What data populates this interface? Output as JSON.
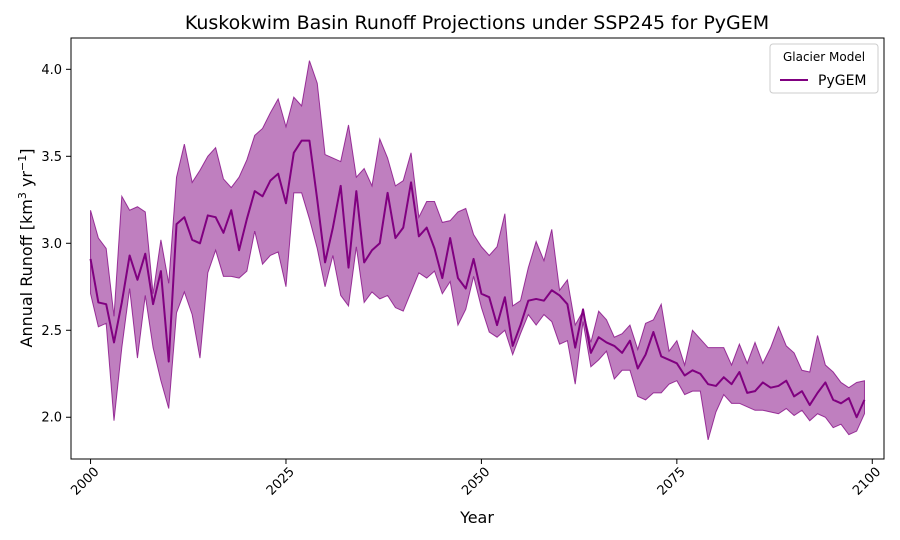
{
  "chart_data": {
    "type": "area",
    "title": "Kuskokwim Basin Runoff Projections under SSP245 for PyGEM",
    "xlabel": "Year",
    "ylabel": "Annual Runoff [km³ yr⁻¹]",
    "ylabel_parts": {
      "prefix": "Annual Runoff [km",
      "sup1": "3",
      "middle": " yr",
      "sup2": "−1",
      "suffix": "]"
    },
    "xlim": [
      1997.5,
      2101.5
    ],
    "ylim": [
      1.76,
      4.18
    ],
    "x_ticks": [
      2000,
      2025,
      2050,
      2075,
      2100
    ],
    "y_ticks": [
      2.0,
      2.5,
      3.0,
      3.5,
      4.0
    ],
    "x_tick_labels": [
      "2000",
      "2025",
      "2050",
      "2075",
      "2100"
    ],
    "y_tick_labels": [
      "2.0",
      "2.5",
      "3.0",
      "3.5",
      "4.0"
    ],
    "grid": false,
    "legend": {
      "title": "Glacier Model",
      "placement": "top-right",
      "entries": [
        "PyGEM"
      ]
    },
    "colors": {
      "line": "#800080",
      "band": "#800080",
      "band_opacity": 0.5
    },
    "x_start": 2000,
    "series": [
      {
        "name": "PyGEM",
        "mean": [
          2.91,
          2.66,
          2.65,
          2.43,
          2.66,
          2.93,
          2.79,
          2.94,
          2.65,
          2.84,
          2.32,
          3.11,
          3.15,
          3.02,
          3.0,
          3.16,
          3.15,
          3.06,
          3.19,
          2.96,
          3.14,
          3.3,
          3.27,
          3.36,
          3.4,
          3.23,
          3.52,
          3.59,
          3.59,
          3.25,
          2.89,
          3.09,
          3.33,
          2.86,
          3.3,
          2.89,
          2.96,
          3.0,
          3.29,
          3.03,
          3.09,
          3.35,
          3.04,
          3.09,
          2.97,
          2.8,
          3.03,
          2.8,
          2.74,
          2.91,
          2.71,
          2.69,
          2.53,
          2.69,
          2.41,
          2.53,
          2.67,
          2.68,
          2.67,
          2.73,
          2.7,
          2.65,
          2.4,
          2.62,
          2.37,
          2.46,
          2.43,
          2.41,
          2.37,
          2.44,
          2.28,
          2.36,
          2.49,
          2.35,
          2.33,
          2.31,
          2.24,
          2.27,
          2.25,
          2.19,
          2.18,
          2.23,
          2.19,
          2.26,
          2.14,
          2.15,
          2.2,
          2.17,
          2.18,
          2.21,
          2.12,
          2.15,
          2.07,
          2.14,
          2.2,
          2.1,
          2.08,
          2.11,
          2.0,
          2.1
        ],
        "upper": [
          3.19,
          3.03,
          2.97,
          2.58,
          3.27,
          3.19,
          3.21,
          3.18,
          2.71,
          3.02,
          2.77,
          3.38,
          3.57,
          3.35,
          3.42,
          3.5,
          3.55,
          3.37,
          3.32,
          3.38,
          3.48,
          3.62,
          3.66,
          3.75,
          3.83,
          3.67,
          3.84,
          3.79,
          4.05,
          3.92,
          3.51,
          3.49,
          3.47,
          3.68,
          3.38,
          3.43,
          3.33,
          3.6,
          3.49,
          3.33,
          3.36,
          3.52,
          3.15,
          3.24,
          3.24,
          3.12,
          3.13,
          3.18,
          3.2,
          3.05,
          2.98,
          2.93,
          2.98,
          3.17,
          2.64,
          2.67,
          2.86,
          3.01,
          2.9,
          3.08,
          2.73,
          2.79,
          2.53,
          2.61,
          2.43,
          2.61,
          2.56,
          2.46,
          2.48,
          2.53,
          2.39,
          2.54,
          2.56,
          2.65,
          2.38,
          2.44,
          2.3,
          2.5,
          2.45,
          2.4,
          2.4,
          2.4,
          2.3,
          2.42,
          2.31,
          2.43,
          2.31,
          2.4,
          2.52,
          2.41,
          2.37,
          2.27,
          2.26,
          2.47,
          2.3,
          2.26,
          2.2,
          2.17,
          2.2,
          2.21
        ],
        "lower": [
          2.71,
          2.52,
          2.54,
          1.98,
          2.4,
          2.74,
          2.34,
          2.7,
          2.4,
          2.21,
          2.05,
          2.6,
          2.72,
          2.59,
          2.34,
          2.83,
          2.96,
          2.81,
          2.81,
          2.8,
          2.84,
          3.07,
          2.88,
          2.93,
          2.95,
          2.75,
          3.29,
          3.29,
          3.14,
          2.97,
          2.75,
          2.93,
          2.7,
          2.64,
          2.98,
          2.66,
          2.72,
          2.68,
          2.7,
          2.63,
          2.61,
          2.72,
          2.83,
          2.8,
          2.84,
          2.71,
          2.78,
          2.53,
          2.62,
          2.81,
          2.63,
          2.49,
          2.46,
          2.5,
          2.36,
          2.48,
          2.59,
          2.53,
          2.59,
          2.55,
          2.42,
          2.44,
          2.19,
          2.55,
          2.29,
          2.33,
          2.38,
          2.22,
          2.27,
          2.27,
          2.12,
          2.1,
          2.14,
          2.14,
          2.19,
          2.21,
          2.13,
          2.15,
          2.15,
          1.87,
          2.03,
          2.13,
          2.08,
          2.08,
          2.06,
          2.04,
          2.04,
          2.03,
          2.02,
          2.05,
          2.01,
          2.04,
          1.98,
          2.02,
          2.0,
          1.94,
          1.96,
          1.9,
          1.92,
          2.02
        ]
      }
    ]
  }
}
